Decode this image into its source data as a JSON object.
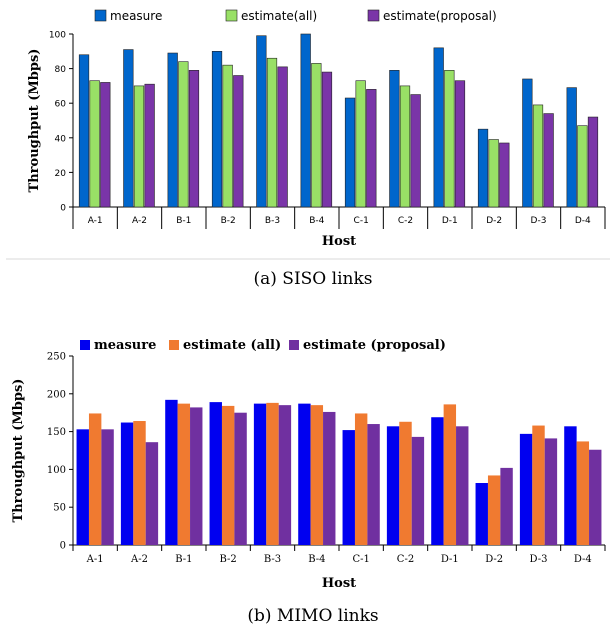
{
  "chart_data": [
    {
      "type": "bar",
      "caption": "(a) SISO links",
      "xlabel": "Host",
      "ylabel": "Throughput (Mbps)",
      "ylim": [
        0,
        100
      ],
      "yticks": [
        0,
        20,
        40,
        60,
        80,
        100
      ],
      "legend_position": "top",
      "grid": false,
      "categories": [
        "A-1",
        "A-2",
        "B-1",
        "B-2",
        "B-3",
        "B-4",
        "C-1",
        "C-2",
        "D-1",
        "D-2",
        "D-3",
        "D-4"
      ],
      "series": [
        {
          "name": "measure",
          "color": "#0066cc",
          "values": [
            88,
            91,
            89,
            90,
            99,
            100,
            63,
            79,
            92,
            45,
            74,
            69
          ]
        },
        {
          "name": "estimate(all)",
          "color": "#99e066",
          "values": [
            73,
            70,
            84,
            82,
            86,
            83,
            73,
            70,
            79,
            39,
            59,
            47
          ]
        },
        {
          "name": "estimate(proposal)",
          "color": "#7a35a8",
          "values": [
            72,
            71,
            79,
            76,
            81,
            78,
            68,
            65,
            73,
            37,
            54,
            52
          ]
        }
      ]
    },
    {
      "type": "bar",
      "caption": "(b) MIMO links",
      "xlabel": "Host",
      "ylabel": "Throughput  (Mbps)",
      "ylim": [
        0,
        250
      ],
      "yticks": [
        0,
        50,
        100,
        150,
        200,
        250
      ],
      "legend_position": "top",
      "grid": false,
      "categories": [
        "A-1",
        "A-2",
        "B-1",
        "B-2",
        "B-3",
        "B-4",
        "C-1",
        "C-2",
        "D-1",
        "D-2",
        "D-3",
        "D-4"
      ],
      "series": [
        {
          "name": "measure",
          "color": "#0000f0",
          "values": [
            153,
            162,
            192,
            189,
            187,
            187,
            152,
            157,
            169,
            82,
            147,
            157
          ]
        },
        {
          "name": "estimate  (all)",
          "color": "#f07a30",
          "values": [
            174,
            164,
            187,
            184,
            188,
            185,
            174,
            163,
            186,
            92,
            158,
            137
          ]
        },
        {
          "name": "estimate  (proposal)",
          "color": "#7030a0",
          "values": [
            153,
            136,
            182,
            175,
            185,
            176,
            160,
            143,
            157,
            102,
            141,
            126
          ]
        }
      ]
    }
  ]
}
